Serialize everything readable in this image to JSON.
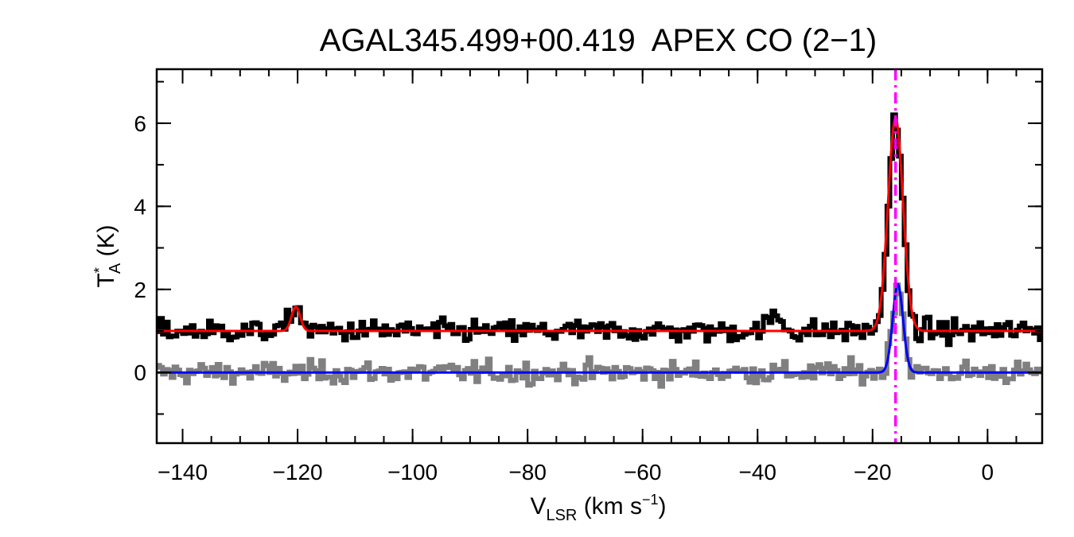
{
  "chart_data": {
    "type": "line",
    "title": "AGAL345.499+00.419  APEX CO (2−1)",
    "xlabel": {
      "main": "V",
      "sub": "LSR",
      "units": " (km s",
      "sup": "−1",
      "close": ")"
    },
    "ylabel": {
      "main": "T",
      "sup": "*",
      "sub": "A",
      "units": " (K)"
    },
    "xlim": [
      -144.5,
      9.5
    ],
    "ylim": [
      -1.7,
      7.3
    ],
    "xticks": [
      -140,
      -120,
      -100,
      -80,
      -60,
      -40,
      -20,
      0
    ],
    "xtick_labels": [
      "−140",
      "−120",
      "−100",
      "−80",
      "−60",
      "−40",
      "−20",
      "0"
    ],
    "yticks": [
      0,
      2,
      4,
      6
    ],
    "ytick_labels": [
      "0",
      "2",
      "4",
      "6"
    ],
    "x_minor_step": 5,
    "y_minor_step": 1,
    "vline": {
      "x": -16,
      "color": "#ff00ff",
      "style": "dash-dot"
    },
    "series": [
      {
        "role": "observed-offset",
        "color": "#000000",
        "style": "histogram",
        "x_start": -144.5,
        "x_step": 0.5,
        "baseline": 1.0,
        "noise": 0.13,
        "components": [
          {
            "center": -120.3,
            "amplitude": 0.62,
            "sigma": 0.9
          },
          {
            "center": -37.0,
            "amplitude": 0.35,
            "sigma": 1.2
          },
          {
            "center": -16.0,
            "amplitude": 5.05,
            "sigma": 1.25
          }
        ]
      },
      {
        "role": "observed",
        "color": "#808080",
        "style": "histogram",
        "x_start": -144.5,
        "x_step": 0.5,
        "baseline": 0.0,
        "noise": 0.13,
        "components": [
          {
            "center": -15.6,
            "amplitude": 2.15,
            "sigma": 0.95
          }
        ]
      },
      {
        "role": "fit-offset",
        "color": "#ff0000",
        "style": "line",
        "baseline": 1.0,
        "components": [
          {
            "center": -120.3,
            "amplitude": 0.58,
            "sigma": 0.75
          },
          {
            "center": -16.0,
            "amplitude": 5.12,
            "sigma": 1.3
          }
        ]
      },
      {
        "role": "fit",
        "color": "#0000ff",
        "style": "line",
        "baseline": 0.0,
        "components": [
          {
            "center": -15.6,
            "amplitude": 2.12,
            "sigma": 0.9
          }
        ]
      }
    ]
  }
}
